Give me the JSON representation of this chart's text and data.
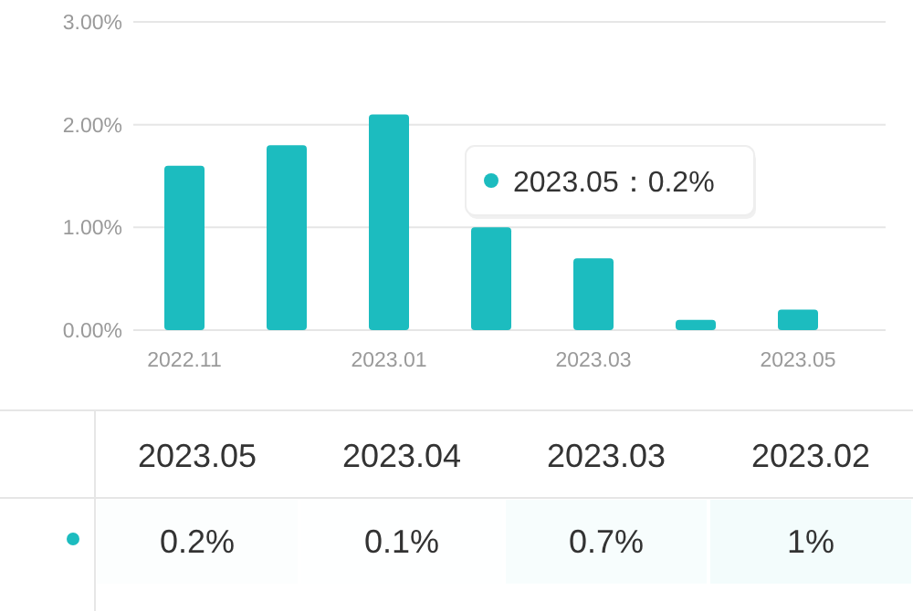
{
  "chart_data": [
    {
      "type": "bar",
      "categories": [
        "2022.11",
        null,
        "2023.01",
        null,
        "2023.03",
        null,
        "2023.05"
      ],
      "values": [
        1.6,
        1.8,
        2.1,
        1.0,
        0.7,
        0.1,
        0.2
      ],
      "color": "#1cbcbf",
      "ylim": [
        0,
        3
      ],
      "yticks": [
        {
          "value": 0,
          "label": "0.00%"
        },
        {
          "value": 1,
          "label": "1.00%"
        },
        {
          "value": 2,
          "label": "2.00%"
        },
        {
          "value": 3,
          "label": "3.00%"
        }
      ],
      "grid": "y",
      "annotations": [
        "2023.05：0.2%"
      ]
    },
    {
      "type": "heatmap",
      "categories": [
        "2023.05",
        "2023.04",
        "2023.03",
        "2023.02"
      ],
      "y_categories": [
        null
      ],
      "cells": [
        [
          0.2,
          0.1,
          0.7,
          1
        ]
      ],
      "cell_labels": [
        [
          "0.2%",
          "0.1%",
          "0.7%",
          "1%"
        ]
      ]
    }
  ]
}
